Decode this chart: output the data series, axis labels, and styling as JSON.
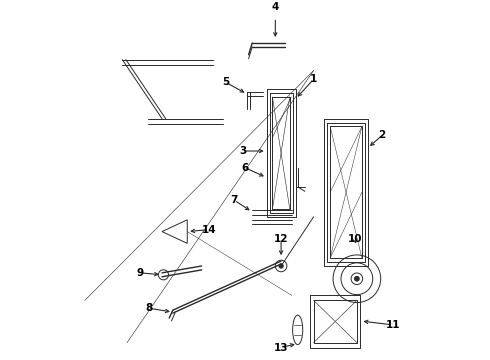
{
  "bg_color": "#ffffff",
  "line_color": "#2a2a2a",
  "figsize": [
    4.9,
    3.6
  ],
  "dpi": 100,
  "lw_thin": 0.7,
  "lw_med": 1.0,
  "lw_thick": 1.4,
  "label_fontsize": 7.5
}
